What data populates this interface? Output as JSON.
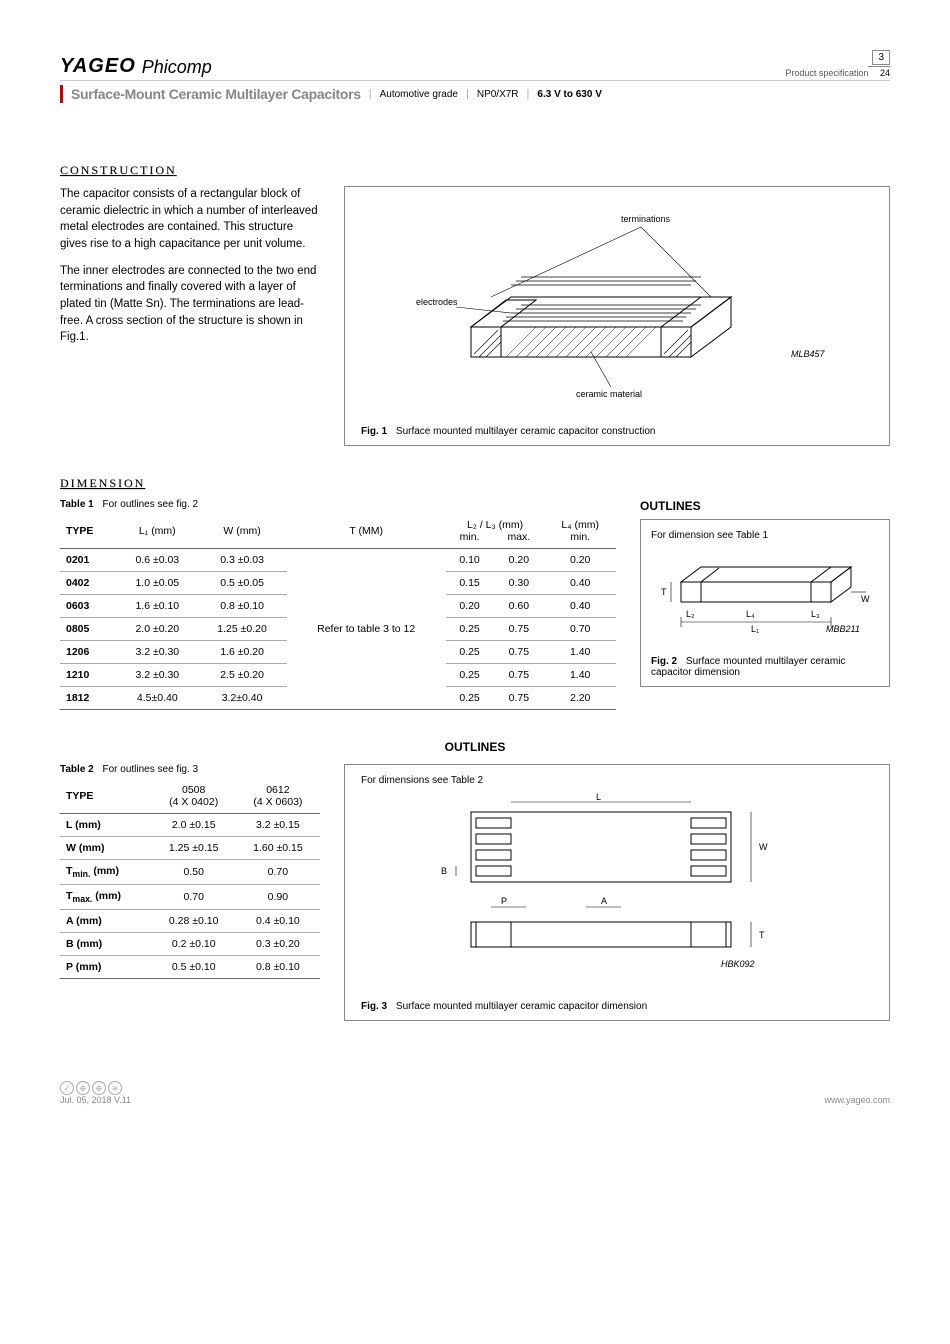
{
  "header": {
    "logo": "YAGEO",
    "logo_sub": "Phicomp",
    "spec_label": "Product specification",
    "page_current": "3",
    "page_total": "24",
    "doc_title": "Surface-Mount Ceramic Multilayer Capacitors",
    "meta1": "Automotive grade",
    "meta2": "NP0/X7R",
    "meta3": "6.3 V to 630 V"
  },
  "construction": {
    "title": "CONSTRUCTION",
    "para1": "The capacitor consists of a rectangular block of ceramic dielectric in which a number of interleaved metal electrodes are contained. This structure gives rise to a high capacitance per unit volume.",
    "para2": "The inner electrodes are connected to the two end terminations and finally covered with a layer of plated tin (Matte Sn). The terminations are lead-free. A cross section of the structure is shown in Fig.1."
  },
  "fig1": {
    "label_terminations": "terminations",
    "label_electrodes": "electrodes",
    "label_ceramic": "ceramic material",
    "code": "MLB457",
    "caption_bold": "Fig. 1",
    "caption_text": "Surface mounted multilayer ceramic capacitor construction"
  },
  "dimension_title": "DIMENSION",
  "table1": {
    "label_bold": "Table 1",
    "label_text": "For outlines see fig. 2",
    "headers": {
      "type": "TYPE",
      "l1": "L₁ (mm)",
      "w": "W (mm)",
      "t": "T (MM)",
      "l23": "L₂ / L₃ (mm)",
      "l4": "L₄ (mm)",
      "min": "min.",
      "max": "max.",
      "min2": "min."
    },
    "t_note": "Refer to table 3 to 12",
    "rows": [
      {
        "type": "0201",
        "l1": "0.6 ±0.03",
        "w": "0.3 ±0.03",
        "l23min": "0.10",
        "l23max": "0.20",
        "l4": "0.20"
      },
      {
        "type": "0402",
        "l1": "1.0 ±0.05",
        "w": "0.5 ±0.05",
        "l23min": "0.15",
        "l23max": "0.30",
        "l4": "0.40"
      },
      {
        "type": "0603",
        "l1": "1.6 ±0.10",
        "w": "0.8 ±0.10",
        "l23min": "0.20",
        "l23max": "0.60",
        "l4": "0.40"
      },
      {
        "type": "0805",
        "l1": "2.0 ±0.20",
        "w": "1.25 ±0.20",
        "l23min": "0.25",
        "l23max": "0.75",
        "l4": "0.70"
      },
      {
        "type": "1206",
        "l1": "3.2 ±0.30",
        "w": "1.6 ±0.20",
        "l23min": "0.25",
        "l23max": "0.75",
        "l4": "1.40"
      },
      {
        "type": "1210",
        "l1": "3.2 ±0.30",
        "w": "2.5 ±0.20",
        "l23min": "0.25",
        "l23max": "0.75",
        "l4": "1.40"
      },
      {
        "type": "1812",
        "l1": "4.5±0.40",
        "w": "3.2±0.40",
        "l23min": "0.25",
        "l23max": "0.75",
        "l4": "2.20"
      }
    ]
  },
  "outlines_title": "OUTLINES",
  "fig2": {
    "note": "For dimension see Table 1",
    "labels": {
      "T": "T",
      "W": "W",
      "L1": "L₁",
      "L2": "L₂",
      "L3": "L₃",
      "L4": "L₄"
    },
    "code": "MBB211",
    "caption_bold": "Fig. 2",
    "caption_text": "Surface mounted multilayer ceramic capacitor dimension"
  },
  "table2": {
    "label_bold": "Table 2",
    "label_text": "For outlines see fig. 3",
    "headers": {
      "type": "TYPE",
      "c1": "0508",
      "c1sub": "(4 X 0402)",
      "c2": "0612",
      "c2sub": "(4 X 0603)"
    },
    "rows": [
      {
        "p": "L (mm)",
        "c1": "2.0 ±0.15",
        "c2": "3.2 ±0.15"
      },
      {
        "p": "W (mm)",
        "c1": "1.25 ±0.15",
        "c2": "1.60 ±0.15"
      },
      {
        "p": "Tmin. (mm)",
        "c1": "0.50",
        "c2": "0.70"
      },
      {
        "p": "Tmax. (mm)",
        "c1": "0.70",
        "c2": "0.90"
      },
      {
        "p": "A (mm)",
        "c1": "0.28 ±0.10",
        "c2": "0.4 ±0.10"
      },
      {
        "p": "B (mm)",
        "c1": "0.2 ±0.10",
        "c2": "0.3 ±0.20"
      },
      {
        "p": "P (mm)",
        "c1": "0.5 ±0.10",
        "c2": "0.8 ±0.10"
      }
    ]
  },
  "fig3": {
    "note": "For dimensions see Table 2",
    "labels": {
      "L": "L",
      "W": "W",
      "B": "B",
      "P": "P",
      "A": "A",
      "T": "T"
    },
    "code": "HBK092",
    "caption_bold": "Fig. 3",
    "caption_text": "Surface mounted multilayer ceramic capacitor dimension"
  },
  "footer": {
    "date": "Jul. 05, 2018 V.11",
    "url": "www.yageo.com"
  }
}
